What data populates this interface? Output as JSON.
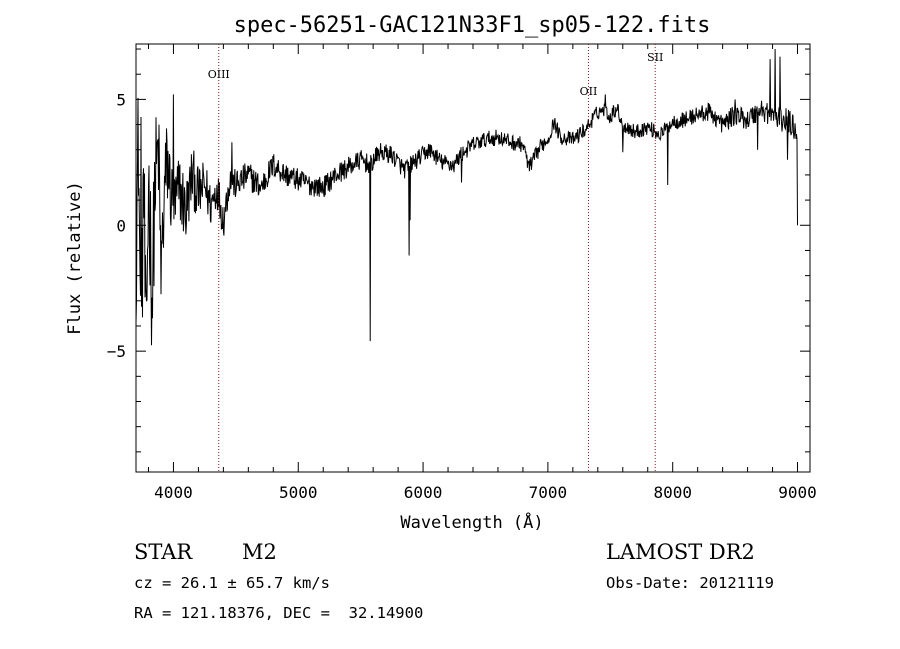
{
  "chart_data": {
    "type": "line",
    "title": "spec-56251-GAC121N33F1_sp05-122.fits",
    "xlabel": "Wavelength (Å)",
    "ylabel": "Flux (relative)",
    "xlim": [
      3700,
      9100
    ],
    "ylim": [
      -9.8,
      7.2
    ],
    "x_ticks": [
      4000,
      5000,
      6000,
      7000,
      8000,
      9000
    ],
    "x_tick_labels": [
      "4000",
      "5000",
      "6000",
      "7000",
      "8000",
      "9000"
    ],
    "y_ticks": [
      -5,
      0,
      5
    ],
    "y_tick_labels": [
      "−5",
      "0",
      "5"
    ],
    "grid": false,
    "line_color": "#000000",
    "marker_color": "#8b1a1a",
    "spectral_lines": [
      {
        "label": "OIII",
        "wavelength": 4363
      },
      {
        "label": "OII",
        "wavelength": 7325
      },
      {
        "label": "SII",
        "wavelength": 7860
      }
    ],
    "spectrum_anchors": [
      [
        3700,
        -1.0
      ],
      [
        3720,
        3.5
      ],
      [
        3740,
        -6.5
      ],
      [
        3760,
        2.5
      ],
      [
        3780,
        -5.5
      ],
      [
        3800,
        2.0
      ],
      [
        3830,
        -3.0
      ],
      [
        3850,
        1.5
      ],
      [
        3880,
        3.0
      ],
      [
        3900,
        -2.0
      ],
      [
        3930,
        1.5
      ],
      [
        3950,
        2.5
      ],
      [
        4000,
        0.5
      ],
      [
        4050,
        1.5
      ],
      [
        4100,
        0.5
      ],
      [
        4150,
        2.0
      ],
      [
        4200,
        1.2
      ],
      [
        4250,
        1.6
      ],
      [
        4300,
        0.8
      ],
      [
        4350,
        1.5
      ],
      [
        4400,
        0.2
      ],
      [
        4450,
        1.8
      ],
      [
        4500,
        1.6
      ],
      [
        4600,
        2.0
      ],
      [
        4700,
        1.5
      ],
      [
        4800,
        2.4
      ],
      [
        4900,
        2.0
      ],
      [
        5000,
        1.8
      ],
      [
        5100,
        1.6
      ],
      [
        5200,
        1.5
      ],
      [
        5300,
        2.0
      ],
      [
        5400,
        2.3
      ],
      [
        5500,
        2.6
      ],
      [
        5580,
        2.4
      ],
      [
        5650,
        2.9
      ],
      [
        5750,
        2.8
      ],
      [
        5850,
        2.2
      ],
      [
        5950,
        2.6
      ],
      [
        6050,
        3.0
      ],
      [
        6150,
        2.5
      ],
      [
        6250,
        2.4
      ],
      [
        6300,
        2.8
      ],
      [
        6400,
        3.2
      ],
      [
        6500,
        3.4
      ],
      [
        6600,
        3.5
      ],
      [
        6700,
        3.3
      ],
      [
        6800,
        3.2
      ],
      [
        6850,
        2.3
      ],
      [
        6950,
        3.2
      ],
      [
        7000,
        3.4
      ],
      [
        7050,
        4.1
      ],
      [
        7100,
        3.5
      ],
      [
        7200,
        3.4
      ],
      [
        7300,
        3.8
      ],
      [
        7400,
        4.5
      ],
      [
        7450,
        4.6
      ],
      [
        7500,
        4.3
      ],
      [
        7550,
        4.7
      ],
      [
        7600,
        4.0
      ],
      [
        7700,
        3.7
      ],
      [
        7800,
        3.9
      ],
      [
        7900,
        3.6
      ],
      [
        8000,
        4.1
      ],
      [
        8100,
        4.2
      ],
      [
        8200,
        4.4
      ],
      [
        8300,
        4.5
      ],
      [
        8400,
        4.0
      ],
      [
        8500,
        4.4
      ],
      [
        8600,
        4.2
      ],
      [
        8700,
        4.6
      ],
      [
        8800,
        4.4
      ],
      [
        8850,
        4.2
      ],
      [
        8900,
        4.2
      ],
      [
        8950,
        4.0
      ],
      [
        9000,
        3.8
      ]
    ],
    "noise_profile": [
      [
        3700,
        3.0
      ],
      [
        3800,
        3.0
      ],
      [
        3900,
        2.2
      ],
      [
        4000,
        1.6
      ],
      [
        4200,
        1.1
      ],
      [
        4500,
        0.6
      ],
      [
        5000,
        0.45
      ],
      [
        6000,
        0.35
      ],
      [
        7000,
        0.3
      ],
      [
        8000,
        0.3
      ],
      [
        8700,
        0.45
      ],
      [
        9000,
        0.55
      ]
    ],
    "absorption_features": [
      {
        "x": 5577,
        "y": -4.6
      },
      {
        "x": 5890,
        "y": -1.2
      },
      {
        "x": 5896,
        "y": 0.2
      },
      {
        "x": 6310,
        "y": 1.7
      },
      {
        "x": 6870,
        "y": 2.2
      },
      {
        "x": 7600,
        "y": 2.9
      },
      {
        "x": 7960,
        "y": 1.6
      },
      {
        "x": 8680,
        "y": 3.0
      },
      {
        "x": 8920,
        "y": 2.6
      },
      {
        "x": 9000,
        "y": 0.0
      }
    ],
    "emission_features": [
      {
        "x": 3740,
        "y": 4.3
      },
      {
        "x": 4000,
        "y": 5.2
      },
      {
        "x": 4470,
        "y": 3.3
      },
      {
        "x": 7460,
        "y": 5.2
      },
      {
        "x": 8500,
        "y": 5.0
      },
      {
        "x": 8780,
        "y": 6.6
      },
      {
        "x": 8820,
        "y": 7.0
      },
      {
        "x": 8860,
        "y": 6.7
      }
    ]
  },
  "info": {
    "object_class": "STAR",
    "subclass": "M2",
    "redshift": "cz = 26.1 ± 65.7 km/s",
    "coordinates": "RA = 121.18376, DEC =  32.14900",
    "survey": "LAMOST DR2",
    "obs_date": "Obs-Date: 20121119"
  }
}
